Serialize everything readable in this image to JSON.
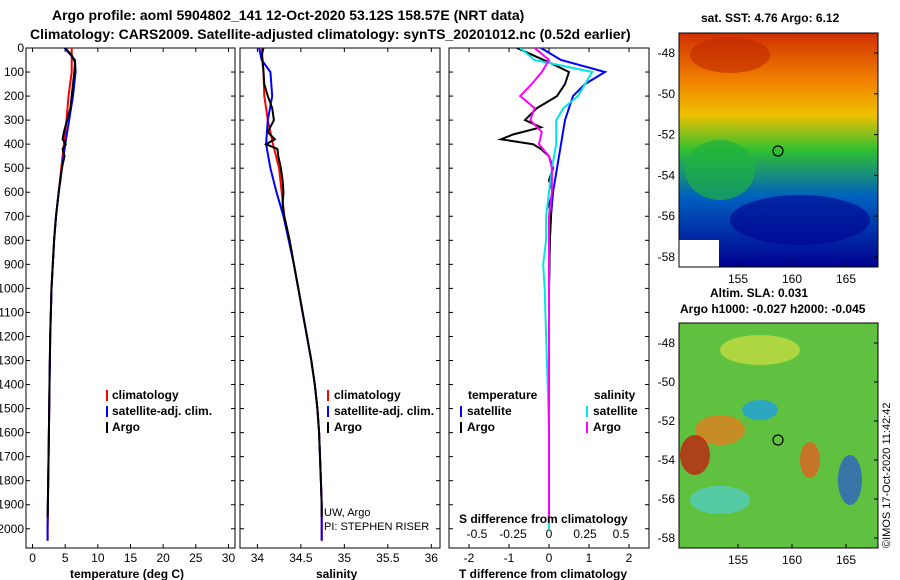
{
  "header": {
    "line1": "Argo profile: aoml 5904802_141 12-Oct-2020 53.12S 158.57E (NRT data)",
    "line2": "Climatology: CARS2009. Satellite-adjusted climatology: synTS_20201012.nc (0.52d earlier)"
  },
  "colors": {
    "climatology": "#ff0000",
    "satellite_adj": "#0000ff",
    "argo": "#000000",
    "satellite_salinity": "#00e5e5",
    "argo_salinity_diff": "#ff00ff"
  },
  "chart_data": [
    {
      "type": "line",
      "id": "temperature",
      "xlabel": "temperature (deg C)",
      "xlim": [
        -1,
        31
      ],
      "xticks": [
        "0",
        "5",
        "10",
        "15",
        "20",
        "25",
        "30"
      ],
      "ylim": [
        0,
        2080
      ],
      "yticks": [
        "0",
        "100",
        "200",
        "300",
        "400",
        "500",
        "600",
        "700",
        "800",
        "900",
        "1000",
        "1100",
        "1200",
        "1300",
        "1400",
        "1500",
        "1600",
        "1700",
        "1800",
        "1900",
        "2000"
      ],
      "legend": [
        "climatology",
        "satellite-adj. clim.",
        "Argo"
      ],
      "series": [
        {
          "name": "climatology",
          "depth": [
            0,
            100,
            200,
            300,
            400,
            500,
            600,
            700,
            800,
            900,
            1000,
            1200,
            1400,
            1600,
            1800,
            2000,
            2050
          ],
          "values": [
            6.0,
            6.0,
            5.5,
            5.2,
            4.8,
            4.4,
            4.0,
            3.6,
            3.3,
            3.1,
            2.9,
            2.7,
            2.6,
            2.5,
            2.4,
            2.3,
            2.3
          ]
        },
        {
          "name": "satellite-adj. clim.",
          "depth": [
            0,
            50,
            100,
            200,
            300,
            400,
            500,
            600,
            700,
            800,
            900,
            1000,
            1200,
            1400,
            1600,
            1800,
            2000,
            2050
          ],
          "values": [
            4.9,
            6.5,
            6.6,
            6.2,
            5.6,
            5.0,
            4.5,
            4.0,
            3.6,
            3.3,
            3.1,
            2.9,
            2.7,
            2.6,
            2.5,
            2.4,
            2.3,
            2.3
          ]
        },
        {
          "name": "Argo",
          "depth": [
            0,
            30,
            60,
            100,
            150,
            200,
            250,
            300,
            350,
            380,
            400,
            420,
            450,
            500,
            600,
            700,
            800,
            900,
            1000,
            1200,
            1400,
            1600,
            1800,
            1950
          ],
          "values": [
            5.0,
            6.0,
            6.5,
            6.4,
            6.2,
            6.0,
            5.8,
            5.3,
            4.8,
            4.6,
            5.1,
            4.6,
            4.9,
            4.5,
            4.0,
            3.6,
            3.3,
            3.1,
            2.9,
            2.7,
            2.6,
            2.5,
            2.4,
            2.3
          ]
        }
      ]
    },
    {
      "type": "line",
      "id": "salinity",
      "xlabel": "salinity",
      "xlim": [
        33.8,
        36.1
      ],
      "xticks": [
        "34",
        "34.5",
        "35",
        "35.5",
        "36"
      ],
      "ylim": [
        0,
        2080
      ],
      "legend": [
        "climatology",
        "satellite-adj. clim.",
        "Argo"
      ],
      "series": [
        {
          "name": "climatology",
          "depth": [
            0,
            100,
            200,
            300,
            400,
            500,
            600,
            700,
            800,
            900,
            1000,
            1100,
            1200,
            1300,
            1400,
            1500,
            1600,
            1700,
            1800,
            1900,
            2000,
            2050
          ],
          "values": [
            34.05,
            34.07,
            34.08,
            34.12,
            34.18,
            34.25,
            34.28,
            34.31,
            34.37,
            34.42,
            34.47,
            34.52,
            34.57,
            34.62,
            34.66,
            34.69,
            34.71,
            34.72,
            34.73,
            34.74,
            34.74,
            34.74
          ]
        },
        {
          "name": "satellite-adj. clim.",
          "depth": [
            0,
            50,
            100,
            200,
            300,
            400,
            500,
            600,
            700,
            800,
            900,
            1000,
            1100,
            1200,
            1300,
            1400,
            1500,
            1600,
            1700,
            1800,
            1900,
            2000,
            2050
          ],
          "values": [
            34.02,
            34.05,
            34.15,
            34.17,
            34.12,
            34.1,
            34.15,
            34.22,
            34.3,
            34.36,
            34.42,
            34.47,
            34.52,
            34.57,
            34.62,
            34.66,
            34.69,
            34.71,
            34.72,
            34.73,
            34.74,
            34.74,
            34.74
          ]
        },
        {
          "name": "Argo",
          "depth": [
            0,
            30,
            60,
            100,
            150,
            200,
            250,
            300,
            350,
            380,
            400,
            420,
            450,
            500,
            550,
            600,
            650,
            700,
            800,
            900,
            1000,
            1100,
            1200,
            1300,
            1400,
            1500,
            1600,
            1700,
            1800,
            1900,
            1950
          ],
          "values": [
            34.07,
            34.05,
            34.06,
            34.07,
            34.08,
            34.12,
            34.17,
            34.19,
            34.12,
            34.2,
            34.1,
            34.23,
            34.24,
            34.27,
            34.29,
            34.3,
            34.29,
            34.31,
            34.37,
            34.42,
            34.47,
            34.52,
            34.57,
            34.62,
            34.66,
            34.69,
            34.71,
            34.72,
            34.73,
            34.74,
            34.74
          ]
        }
      ],
      "annotations": [
        "UW, Argo",
        "PI: STEPHEN RISER"
      ]
    },
    {
      "type": "line",
      "id": "difference",
      "xlabel": "T difference from climatology",
      "xlim": [
        -2.5,
        2.5
      ],
      "xticks": [
        "-2",
        "-1",
        "0",
        "1",
        "2"
      ],
      "x2label": "S difference from climatology",
      "x2ticks": [
        "-0.5",
        "-0.25",
        "0",
        "0.25",
        "0.5"
      ],
      "ylim": [
        0,
        2080
      ],
      "legend_temperature_title": "temperature",
      "legend_salinity_title": "salinity",
      "legend": [
        "satellite",
        "Argo",
        "satellite",
        "Argo"
      ],
      "series": [
        {
          "name": "satellite",
          "variable": "temperature",
          "depth": [
            0,
            50,
            100,
            150,
            200,
            300,
            400,
            500,
            600,
            700,
            800,
            1000,
            1500,
            2000
          ],
          "values": [
            -0.2,
            0.3,
            1.4,
            0.9,
            0.6,
            0.4,
            0.3,
            0.2,
            0.1,
            0.05,
            0.02,
            0.0,
            0.0,
            0.0
          ]
        },
        {
          "name": "Argo",
          "variable": "temperature",
          "depth": [
            0,
            30,
            60,
            100,
            150,
            200,
            250,
            300,
            330,
            360,
            380,
            400,
            420,
            450,
            500,
            550,
            600,
            650,
            700,
            800,
            1000,
            1500,
            1950
          ],
          "values": [
            -0.8,
            -0.4,
            0.0,
            0.5,
            0.4,
            0.2,
            -0.3,
            -0.6,
            -0.2,
            -0.9,
            -1.2,
            -0.4,
            -0.2,
            0.0,
            0.1,
            0.0,
            0.1,
            0.0,
            0.05,
            0.02,
            0.0,
            0.0,
            0.0
          ]
        },
        {
          "name": "satellite",
          "variable": "salinity",
          "depth": [
            0,
            50,
            100,
            150,
            200,
            250,
            300,
            400,
            500,
            600,
            700,
            800,
            900,
            1000,
            1200,
            1400,
            1600,
            1800,
            2000
          ],
          "values": [
            -0.2,
            -0.1,
            0.3,
            0.25,
            0.2,
            0.1,
            0.05,
            0.05,
            0.02,
            0.0,
            -0.02,
            -0.02,
            -0.04,
            -0.03,
            -0.02,
            -0.01,
            0.0,
            0.0,
            0.0
          ]
        },
        {
          "name": "Argo",
          "variable": "salinity",
          "depth": [
            0,
            50,
            100,
            150,
            200,
            250,
            300,
            350,
            400,
            450,
            500,
            600,
            700,
            800,
            1000,
            1500,
            1950
          ],
          "values": [
            -0.1,
            0.0,
            -0.05,
            -0.12,
            -0.2,
            -0.1,
            -0.13,
            -0.05,
            -0.07,
            0.0,
            0.02,
            0.02,
            0.0,
            0.0,
            0.0,
            0.0,
            0.0
          ]
        }
      ]
    }
  ],
  "maps": {
    "sst": {
      "title": "sat. SST: 4.76 Argo: 6.12",
      "yticks": [
        "-48",
        "-50",
        "-52",
        "-54",
        "-56",
        "-58"
      ],
      "xticks": [
        "155",
        "160",
        "165"
      ]
    },
    "sla": {
      "title1": "Altim. SLA: 0.031",
      "title2": "Argo h1000: -0.027 h2000: -0.045",
      "yticks": [
        "-48",
        "-50",
        "-52",
        "-54",
        "-56",
        "-58"
      ],
      "xticks": [
        "155",
        "160",
        "165"
      ],
      "credit": "©IMOS 17-Oct-2020 11:42:42"
    }
  }
}
